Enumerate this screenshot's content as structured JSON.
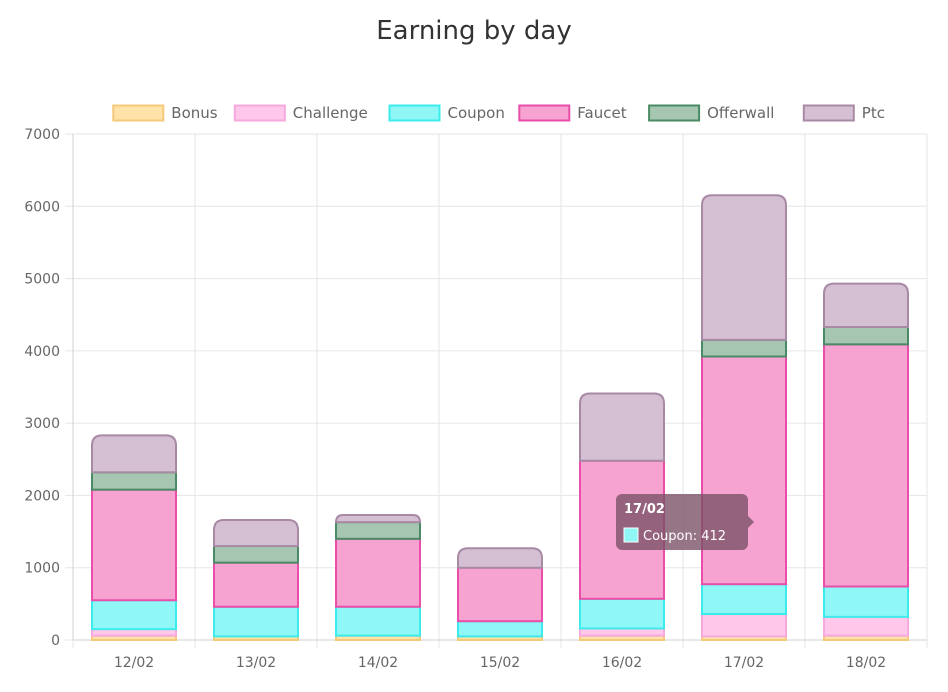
{
  "chart_data": {
    "type": "bar",
    "stacked": true,
    "title": "Earning by day",
    "categories": [
      "12/02",
      "13/02",
      "14/02",
      "15/02",
      "16/02",
      "17/02",
      "18/02"
    ],
    "ylim": [
      0,
      7000
    ],
    "yticks": [
      0,
      1000,
      2000,
      3000,
      4000,
      5000,
      6000,
      7000
    ],
    "grid": true,
    "legend_position": "top",
    "series": [
      {
        "name": "Bonus",
        "fill": "#ffe3a8",
        "stroke": "#f5c97a",
        "values": [
          60,
          50,
          60,
          50,
          60,
          50,
          60
        ]
      },
      {
        "name": "Challenge",
        "fill": "#ffc8ea",
        "stroke": "#f7a8dc",
        "values": [
          90,
          0,
          0,
          0,
          100,
          310,
          260
        ]
      },
      {
        "name": "Coupon",
        "fill": "#8ff7f5",
        "stroke": "#3cecec",
        "values": [
          400,
          410,
          400,
          210,
          410,
          412,
          420
        ]
      },
      {
        "name": "Faucet",
        "fill": "#f7a3d1",
        "stroke": "#e94fa8",
        "values": [
          1530,
          610,
          940,
          740,
          1910,
          3150,
          3350
        ]
      },
      {
        "name": "Offerwall",
        "fill": "#a6c6b1",
        "stroke": "#4a8a64",
        "values": [
          240,
          230,
          230,
          0,
          0,
          230,
          240
        ]
      },
      {
        "name": "Ptc",
        "fill": "#d5bfd3",
        "stroke": "#a98aa5",
        "values": [
          510,
          360,
          100,
          270,
          930,
          2000,
          600
        ]
      }
    ],
    "tooltip": {
      "title": "17/02",
      "label": "Coupon: 412",
      "category_index": 5,
      "series_index": 2
    }
  }
}
